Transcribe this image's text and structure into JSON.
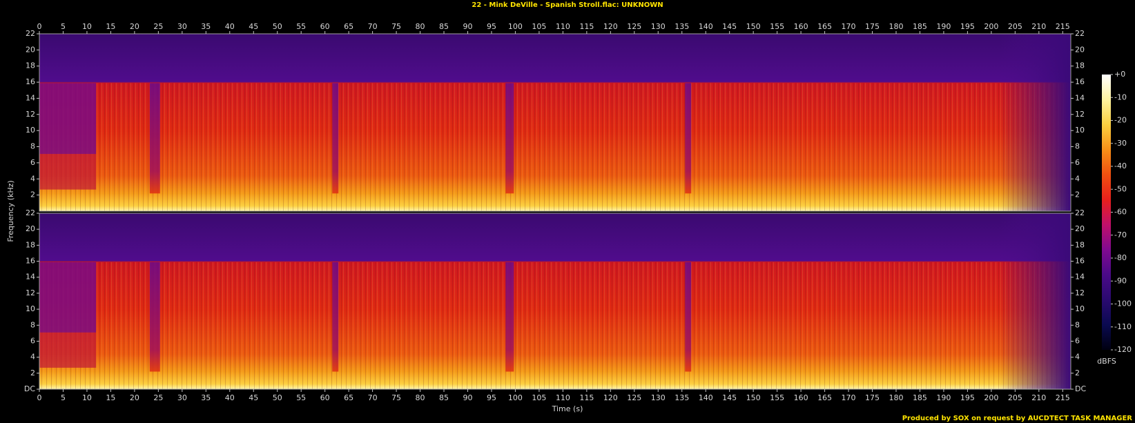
{
  "chart_data": {
    "type": "spectrogram",
    "title": "22 - Mink DeVille - Spanish Stroll.flac: UNKNOWN",
    "x_label": "Time (s)",
    "y_label": "Frequency (kHz)",
    "colorbar_label": "dBFS",
    "footer": "Produced by SOX on request by AUCDTECT TASK MANAGER",
    "xlim": [
      0,
      216.7
    ],
    "xticks": [
      0,
      5,
      10,
      15,
      20,
      25,
      30,
      35,
      40,
      45,
      50,
      55,
      60,
      65,
      70,
      75,
      80,
      85,
      90,
      95,
      100,
      105,
      110,
      115,
      120,
      125,
      130,
      135,
      140,
      145,
      150,
      155,
      160,
      165,
      170,
      175,
      180,
      185,
      190,
      195,
      200,
      205,
      210,
      215
    ],
    "ylim": [
      0,
      22
    ],
    "yticks": [
      {
        "value": 0,
        "label": "DC"
      },
      2,
      4,
      6,
      8,
      10,
      12,
      14,
      16,
      18,
      20,
      22
    ],
    "zlim": [
      -120,
      0
    ],
    "zticks": [
      {
        "value": 0,
        "label": "+0"
      },
      -10,
      -20,
      -30,
      -40,
      -50,
      -60,
      -70,
      -80,
      -90,
      -100,
      -110,
      -120
    ],
    "colormap": [
      "#000010",
      "#0a0a50",
      "#2a0a70",
      "#4a0a88",
      "#800a90",
      "#c0106a",
      "#e8201c",
      "#f05010",
      "#f89018",
      "#fcd040",
      "#fff4a0",
      "#ffffff"
    ]
  }
}
